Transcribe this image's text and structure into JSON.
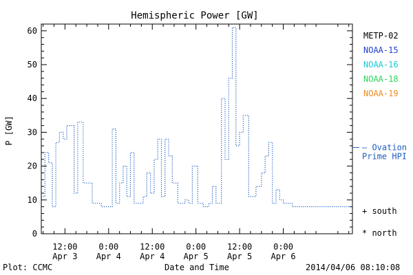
{
  "chart_data": {
    "type": "line",
    "title": "Hemispheric Power [GW]",
    "xlabel": "Date and Time",
    "ylabel": "P [GW]",
    "ylim": [
      0,
      62
    ],
    "yticks": [
      0,
      10,
      20,
      30,
      40,
      50,
      60
    ],
    "x_unit": "hours since 2014-04-03 00:00 UT",
    "xlim": [
      5.5,
      91
    ],
    "xticks": [
      {
        "x": 12,
        "line1": "12:00",
        "line2": "Apr 3"
      },
      {
        "x": 24,
        "line1": "0:00",
        "line2": "Apr 4"
      },
      {
        "x": 36,
        "line1": "12:00",
        "line2": "Apr 4"
      },
      {
        "x": 48,
        "line1": "0:00",
        "line2": "Apr 5"
      },
      {
        "x": 60,
        "line1": "12:00",
        "line2": "Apr 5"
      },
      {
        "x": 72,
        "line1": "0:00",
        "line2": "Apr 6"
      }
    ],
    "grid": false,
    "legend_position": "right",
    "legend": [
      {
        "label": "METP-02",
        "color": "#000000"
      },
      {
        "label": "NOAA-15",
        "color": "#1f3fcf"
      },
      {
        "label": "NOAA-16",
        "color": "#19c7d6"
      },
      {
        "label": "NOAA-18",
        "color": "#2bd65a"
      },
      {
        "label": "NOAA-19",
        "color": "#f08c1e"
      }
    ],
    "model_label_line1": "— Ovation",
    "model_label_line2": "Prime HPI",
    "model_value": 25.5,
    "model_color": "#1f5fbf",
    "marker_south": "+ south",
    "marker_north": "* north",
    "series": [
      {
        "name": "Ovation Prime HPI",
        "color": "#1f5fbf",
        "style": "dotted-step",
        "x": [
          5.5,
          6.5,
          7.5,
          8.5,
          9.5,
          10.5,
          11.5,
          12.5,
          13.5,
          14.5,
          15.5,
          17.0,
          19.5,
          22.0,
          23.5,
          25.0,
          26.0,
          27.0,
          28.0,
          29.0,
          30.0,
          31.0,
          32.0,
          33.5,
          34.5,
          35.5,
          36.5,
          37.5,
          38.5,
          39.5,
          40.5,
          41.5,
          43.0,
          44.0,
          45.0,
          46.0,
          47.0,
          48.5,
          50.0,
          51.5,
          52.5,
          53.5,
          55.0,
          56.0,
          57.0,
          58.0,
          59.0,
          60.0,
          61.0,
          62.5,
          64.5,
          66.0,
          67.0,
          68.0,
          69.0,
          70.0,
          71.0,
          72.0,
          73.0,
          74.5
        ],
        "y": [
          11,
          24,
          21,
          8,
          27,
          30,
          28,
          32,
          32,
          12,
          33,
          15,
          9,
          8,
          8,
          31,
          9,
          15,
          20,
          11,
          24,
          9,
          9,
          11,
          18,
          12,
          22,
          28,
          11,
          28,
          23,
          15,
          9,
          9,
          10,
          9,
          20,
          9,
          8,
          9,
          14,
          9,
          40,
          22,
          46,
          61,
          26,
          30,
          35,
          11,
          14,
          18,
          23,
          27,
          9,
          13,
          10,
          9,
          9,
          8
        ],
        "x_end": 91
      }
    ]
  },
  "footer": {
    "plot_credit": "Plot: CCMC",
    "timestamp": "2014/04/06 08:10:08"
  }
}
